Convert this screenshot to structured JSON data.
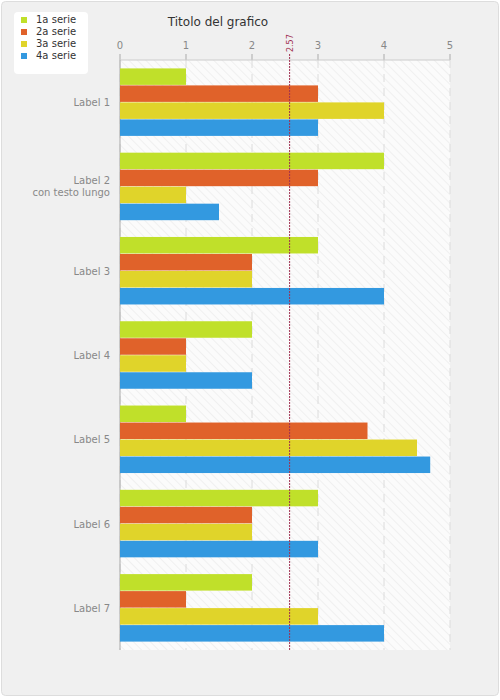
{
  "chart_data": {
    "type": "bar",
    "orientation": "horizontal",
    "title": "Titolo del grafico",
    "categories": [
      "Label 1",
      "Label 2\ncon testo lungo",
      "Label 3",
      "Label 4",
      "Label 5",
      "Label 6",
      "Label 7"
    ],
    "series": [
      {
        "name": "1a serie",
        "color": "#c0e02a",
        "values": [
          1,
          4,
          3,
          2,
          1,
          3,
          2
        ]
      },
      {
        "name": "2a serie",
        "color": "#e0622a",
        "values": [
          3,
          3,
          2,
          1,
          3.75,
          2,
          1
        ]
      },
      {
        "name": "3a serie",
        "color": "#e0d42a",
        "values": [
          4,
          1,
          2,
          1,
          4.5,
          2,
          3
        ]
      },
      {
        "name": "4a serie",
        "color": "#3399e0",
        "values": [
          3,
          1.5,
          4,
          2,
          4.7,
          3,
          4
        ]
      }
    ],
    "xlim": [
      0,
      5
    ],
    "xticks": [
      0,
      1,
      2,
      3,
      4,
      5
    ],
    "grid": true,
    "legend": "top-left",
    "reference_line": 2.57
  }
}
